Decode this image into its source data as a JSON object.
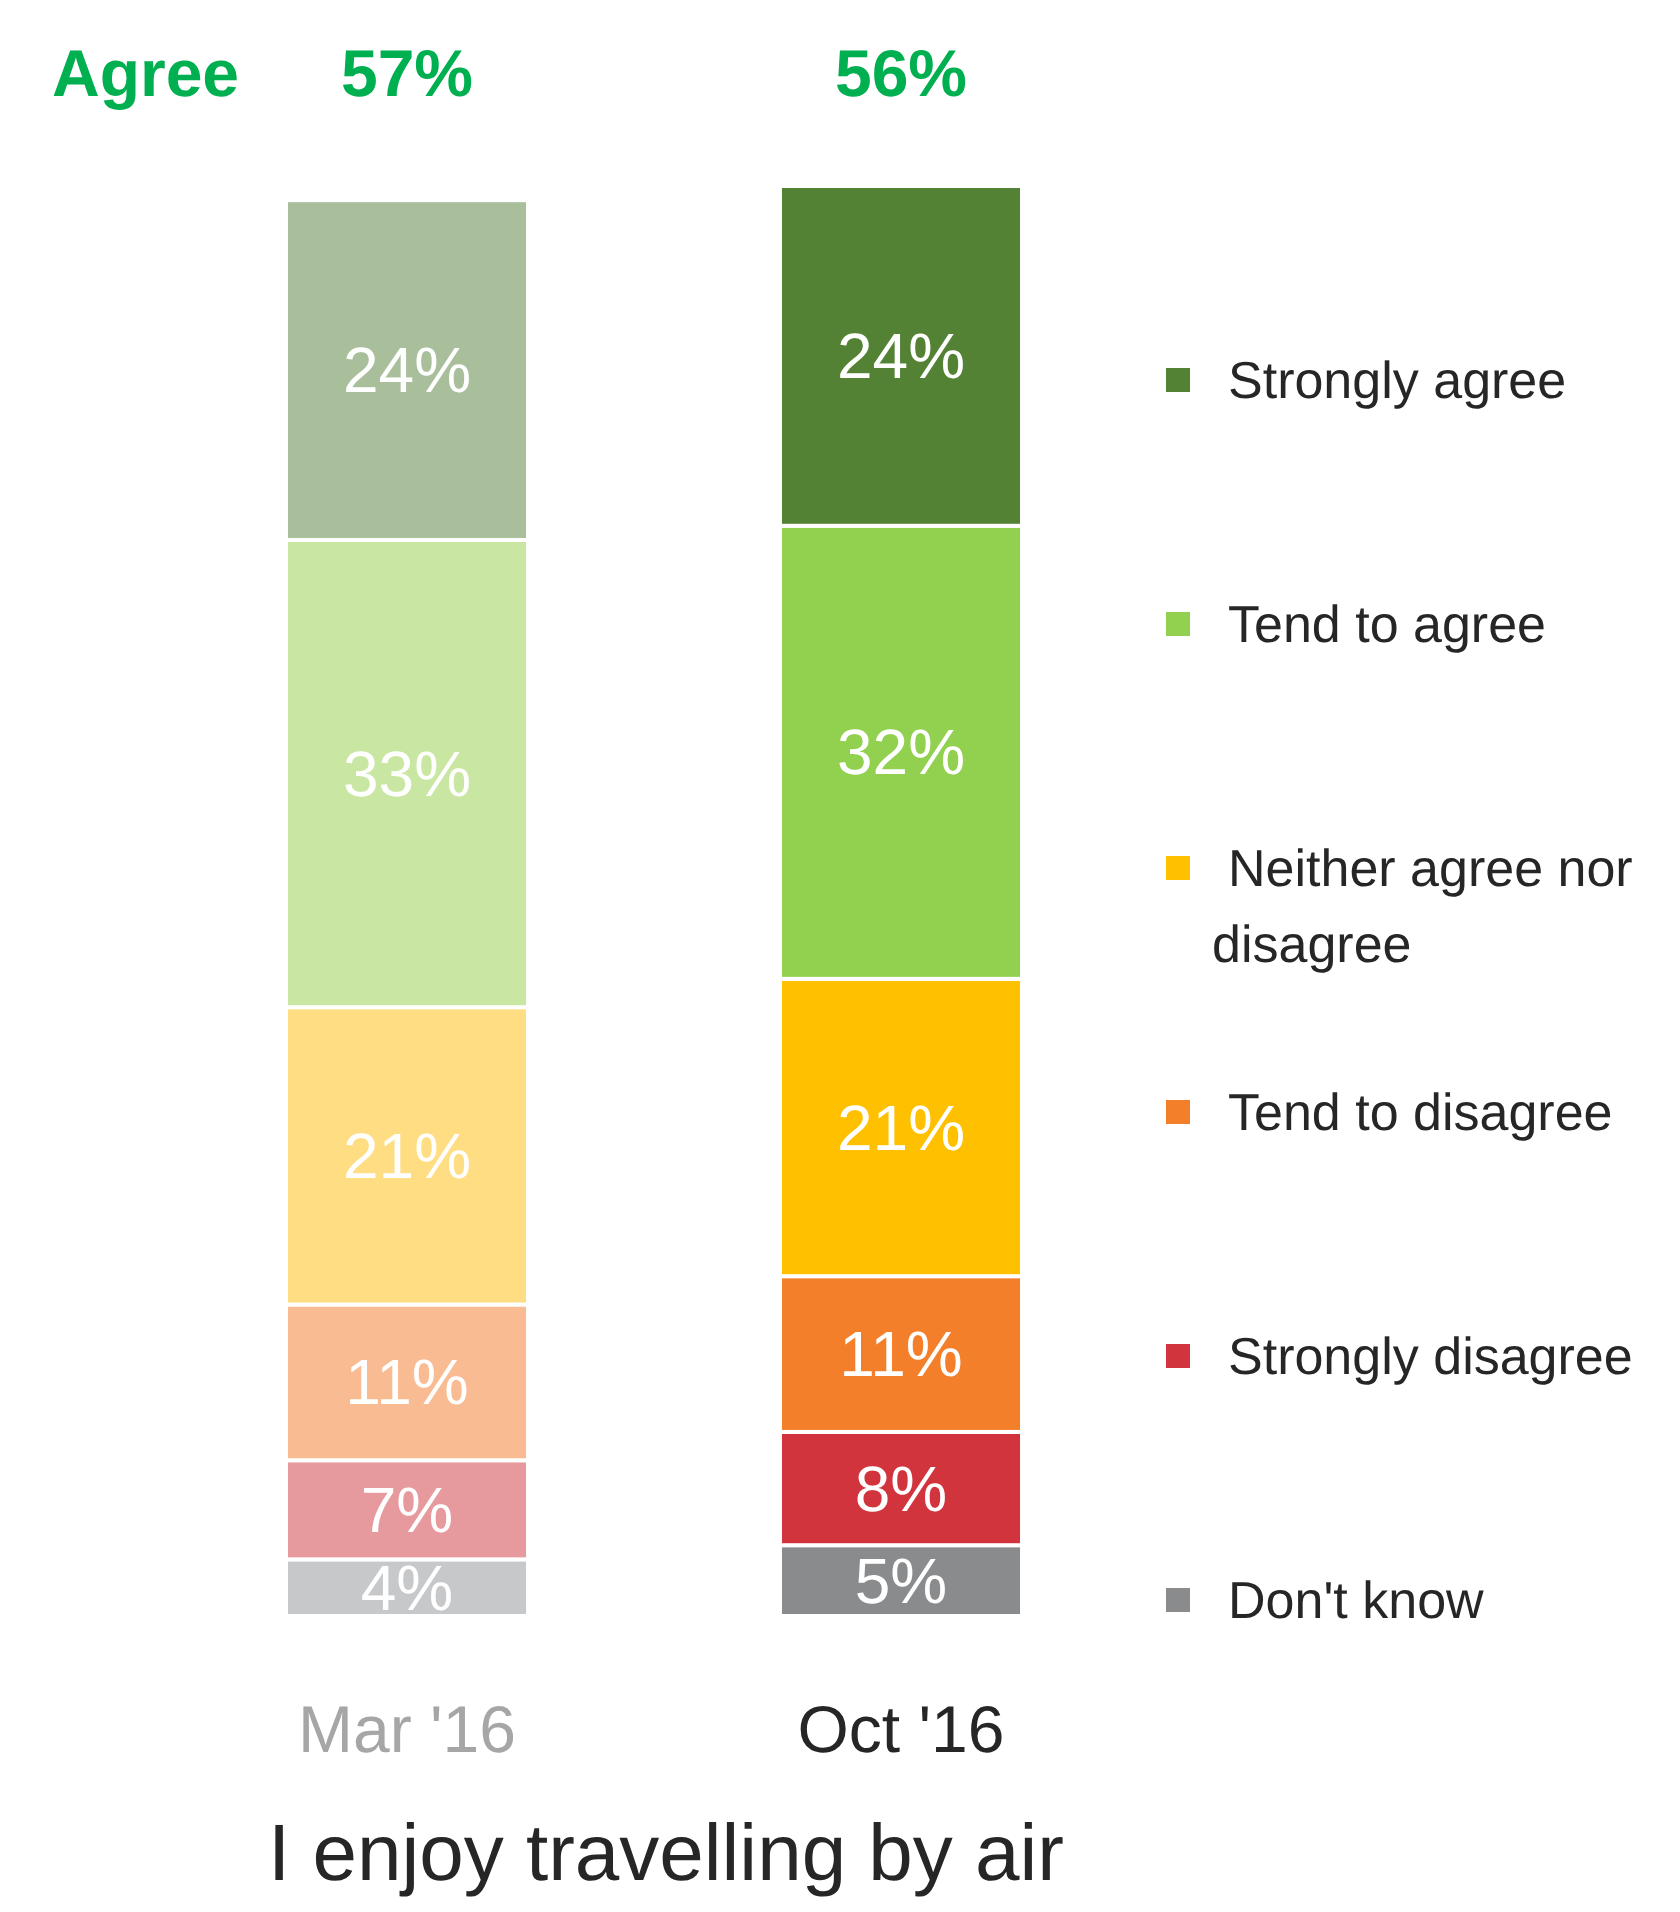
{
  "chart_data": {
    "type": "bar",
    "stacked": true,
    "title": "I enjoy travelling by air",
    "categories": [
      "Mar '16",
      "Oct '16"
    ],
    "legend": "right",
    "annotations": [
      "Agree",
      "57%",
      "56%"
    ],
    "series": [
      {
        "name": "Don't know",
        "color": "#898b8d",
        "colors": [
          "#c6c8ca",
          "#898b8d"
        ],
        "values": [
          4,
          5
        ],
        "value_labels": [
          "4%",
          "5%"
        ]
      },
      {
        "name": "Strongly disagree",
        "color": "#d1343c",
        "colors": [
          "#e69a9e",
          "#d1343c"
        ],
        "values": [
          7,
          8
        ],
        "value_labels": [
          "7%",
          "8%"
        ]
      },
      {
        "name": "Tend to disagree",
        "color": "#f47f2a",
        "colors": [
          "#f9bb92",
          "#f47f2a"
        ],
        "values": [
          11,
          11
        ],
        "value_labels": [
          "11%",
          "11%"
        ]
      },
      {
        "name": "Neither agree nor disagree",
        "color": "#ffc000",
        "colors": [
          "#ffdd83",
          "#ffc000"
        ],
        "values": [
          21,
          21
        ],
        "value_labels": [
          "21%",
          "21%"
        ]
      },
      {
        "name": "Tend to agree",
        "color": "#92d050",
        "colors": [
          "#c9e6a3",
          "#92d050"
        ],
        "values": [
          33,
          32
        ],
        "value_labels": [
          "33%",
          "32%"
        ]
      },
      {
        "name": "Strongly agree",
        "color": "#548235",
        "colors": [
          "#a9bf9b",
          "#548235"
        ],
        "values": [
          24,
          24
        ],
        "value_labels": [
          "24%",
          "24%"
        ]
      }
    ]
  }
}
